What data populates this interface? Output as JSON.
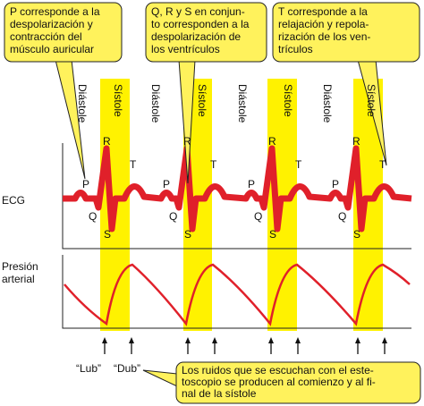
{
  "callouts": [
    {
      "lines": [
        "P corresponde a la",
        "despolarización y",
        "contracción del",
        "músculo auricular"
      ]
    },
    {
      "lines": [
        "Q, R y S en conjun-",
        "to corresponden a la",
        "despolarización de",
        "los ventrículos"
      ]
    },
    {
      "lines": [
        "T corresponde a la",
        "relajación y repola-",
        "rización de los ven-",
        "trículos"
      ]
    }
  ],
  "phases": [
    "Diástole",
    "Sístole",
    "Diástole",
    "Sístole",
    "Diástole",
    "Sístole",
    "Diástole",
    "Sístole"
  ],
  "waves": [
    {
      "p": "P",
      "r": "R",
      "t": "T",
      "q": "Q",
      "s": "S"
    },
    {
      "p": "P",
      "r": "R",
      "t": "T",
      "q": "Q",
      "s": "S"
    },
    {
      "p": "P",
      "r": "R",
      "t": "T",
      "q": "Q",
      "s": "S"
    },
    {
      "p": "P",
      "r": "R",
      "t": "T",
      "q": "Q",
      "s": "S"
    }
  ],
  "rows": {
    "ecg": "ECG",
    "pressure": [
      "Presión",
      "arterial"
    ]
  },
  "sounds": [
    "“Lub”",
    "“Dub”"
  ],
  "note": {
    "lines": [
      "Los ruidos que se escuchan con el este-",
      "toscopio se producen al comienzo y al fi-",
      "nal de la sístole"
    ]
  }
}
